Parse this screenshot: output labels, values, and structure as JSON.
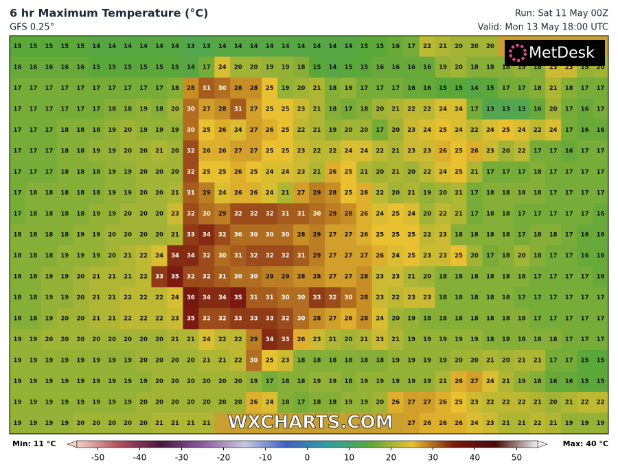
{
  "header": {
    "title": "6 hr Maximum Temperature (°C)",
    "subtitle": "GFS 0.25°",
    "run": "Run: Sat 11 May 00Z",
    "valid": "Valid: Mon 13 May 18:00 UTC"
  },
  "logo": "MetDesk",
  "watermark": "WXCHARTS.COM",
  "grid": {
    "rows": [
      [
        15,
        15,
        15,
        15,
        15,
        14,
        14,
        14,
        14,
        14,
        14,
        13,
        13,
        14,
        14,
        14,
        14,
        14,
        14,
        14,
        14,
        14,
        15,
        15,
        16,
        17,
        22,
        21,
        20,
        20,
        20,
        null,
        null,
        null,
        null,
        null,
        null,
        null
      ],
      [
        16,
        16,
        16,
        16,
        16,
        15,
        15,
        15,
        15,
        15,
        15,
        14,
        17,
        24,
        20,
        20,
        19,
        19,
        18,
        15,
        14,
        15,
        15,
        16,
        16,
        16,
        16,
        19,
        20,
        18,
        18,
        18,
        19,
        18,
        23,
        23,
        19,
        20
      ],
      [
        17,
        17,
        17,
        17,
        17,
        17,
        17,
        17,
        17,
        17,
        18,
        28,
        31,
        30,
        28,
        28,
        25,
        19,
        20,
        21,
        18,
        19,
        17,
        17,
        17,
        16,
        16,
        15,
        15,
        14,
        15,
        17,
        17,
        18,
        21,
        18,
        17,
        17
      ],
      [
        17,
        17,
        17,
        17,
        17,
        17,
        18,
        18,
        19,
        18,
        20,
        30,
        27,
        28,
        31,
        27,
        25,
        25,
        23,
        21,
        18,
        17,
        18,
        20,
        21,
        22,
        22,
        24,
        24,
        17,
        13,
        13,
        13,
        16,
        20,
        17,
        16,
        17
      ],
      [
        17,
        17,
        17,
        18,
        18,
        18,
        19,
        20,
        19,
        19,
        19,
        30,
        25,
        26,
        24,
        27,
        26,
        25,
        22,
        21,
        19,
        20,
        20,
        17,
        20,
        23,
        24,
        25,
        24,
        22,
        24,
        25,
        24,
        22,
        24,
        17,
        16,
        16
      ],
      [
        17,
        17,
        17,
        18,
        18,
        19,
        19,
        20,
        20,
        21,
        20,
        32,
        26,
        26,
        27,
        27,
        25,
        25,
        23,
        22,
        22,
        24,
        24,
        22,
        21,
        23,
        23,
        26,
        25,
        26,
        23,
        20,
        22,
        17,
        17,
        16,
        17,
        17
      ],
      [
        17,
        17,
        17,
        18,
        18,
        18,
        19,
        19,
        20,
        20,
        20,
        32,
        25,
        25,
        26,
        25,
        24,
        24,
        23,
        21,
        26,
        25,
        21,
        20,
        21,
        20,
        22,
        24,
        25,
        21,
        17,
        17,
        17,
        18,
        17,
        17,
        17,
        17
      ],
      [
        17,
        18,
        18,
        18,
        18,
        18,
        19,
        19,
        20,
        20,
        21,
        31,
        29,
        24,
        26,
        26,
        24,
        21,
        27,
        29,
        28,
        25,
        26,
        22,
        20,
        21,
        19,
        20,
        21,
        17,
        18,
        18,
        18,
        18,
        17,
        17,
        17,
        17
      ],
      [
        17,
        18,
        18,
        18,
        18,
        19,
        19,
        20,
        20,
        20,
        23,
        32,
        30,
        29,
        32,
        32,
        32,
        31,
        31,
        30,
        29,
        28,
        26,
        24,
        25,
        24,
        20,
        22,
        21,
        17,
        18,
        18,
        17,
        17,
        17,
        17,
        17,
        16
      ],
      [
        18,
        18,
        18,
        18,
        19,
        19,
        20,
        20,
        20,
        20,
        21,
        33,
        34,
        32,
        30,
        30,
        30,
        30,
        28,
        29,
        27,
        27,
        26,
        25,
        25,
        25,
        22,
        23,
        18,
        18,
        18,
        18,
        17,
        18,
        18,
        17,
        16,
        16
      ],
      [
        18,
        18,
        18,
        19,
        19,
        19,
        20,
        21,
        22,
        24,
        34,
        34,
        32,
        30,
        31,
        32,
        32,
        32,
        31,
        29,
        27,
        27,
        27,
        26,
        24,
        25,
        23,
        23,
        25,
        20,
        17,
        18,
        20,
        18,
        17,
        17,
        16,
        16
      ],
      [
        18,
        18,
        19,
        19,
        20,
        21,
        21,
        21,
        22,
        33,
        35,
        32,
        32,
        31,
        30,
        30,
        29,
        29,
        28,
        28,
        27,
        27,
        28,
        23,
        23,
        21,
        20,
        18,
        18,
        18,
        18,
        18,
        18,
        17,
        17,
        17,
        17,
        16
      ],
      [
        18,
        18,
        19,
        19,
        20,
        21,
        21,
        22,
        22,
        22,
        24,
        36,
        34,
        34,
        35,
        31,
        31,
        30,
        30,
        33,
        32,
        30,
        28,
        23,
        22,
        23,
        23,
        18,
        18,
        18,
        18,
        18,
        17,
        17,
        17,
        17,
        17,
        17
      ],
      [
        18,
        18,
        19,
        20,
        20,
        21,
        21,
        22,
        22,
        22,
        23,
        35,
        32,
        32,
        33,
        33,
        33,
        32,
        30,
        28,
        27,
        26,
        28,
        24,
        20,
        19,
        18,
        18,
        18,
        18,
        18,
        18,
        18,
        17,
        17,
        17,
        17,
        17
      ],
      [
        19,
        19,
        20,
        20,
        20,
        20,
        20,
        20,
        20,
        20,
        21,
        21,
        24,
        22,
        22,
        29,
        34,
        33,
        26,
        23,
        21,
        20,
        21,
        23,
        21,
        19,
        19,
        19,
        19,
        19,
        18,
        18,
        18,
        18,
        18,
        17,
        17,
        17
      ],
      [
        19,
        19,
        19,
        19,
        19,
        19,
        19,
        19,
        20,
        20,
        20,
        20,
        21,
        21,
        22,
        30,
        25,
        23,
        18,
        18,
        18,
        18,
        18,
        18,
        19,
        19,
        19,
        19,
        20,
        20,
        21,
        20,
        21,
        21,
        17,
        17,
        15,
        15
      ],
      [
        19,
        19,
        19,
        19,
        19,
        19,
        19,
        19,
        19,
        20,
        20,
        20,
        20,
        20,
        20,
        19,
        17,
        18,
        18,
        19,
        19,
        18,
        19,
        19,
        19,
        19,
        19,
        21,
        26,
        27,
        24,
        21,
        19,
        18,
        16,
        16,
        15,
        15
      ],
      [
        19,
        19,
        19,
        19,
        19,
        19,
        19,
        19,
        20,
        20,
        20,
        20,
        20,
        20,
        20,
        26,
        24,
        18,
        17,
        18,
        18,
        19,
        19,
        20,
        26,
        27,
        27,
        26,
        25,
        23,
        22,
        22,
        22,
        21,
        20,
        21,
        22,
        22
      ],
      [
        19,
        19,
        19,
        19,
        20,
        20,
        20,
        20,
        20,
        21,
        21,
        21,
        21,
        null,
        null,
        null,
        null,
        null,
        null,
        null,
        null,
        null,
        null,
        null,
        null,
        27,
        26,
        26,
        26,
        24,
        23,
        21,
        21,
        22,
        21,
        19,
        19,
        19
      ]
    ]
  },
  "colorbar": {
    "range": [
      -55,
      55
    ],
    "ticks": [
      -50,
      -40,
      -30,
      -20,
      -10,
      0,
      10,
      20,
      30,
      40,
      50
    ],
    "colors": [
      "#f4d0c4",
      "#b05060",
      "#4a1440",
      "#8a5aa0",
      "#c8c8e0",
      "#4060c0",
      "#30a0a0",
      "#5aa83a",
      "#e8c030",
      "#7a1a10",
      "#4a0808",
      "#f0f0f0"
    ],
    "min_label": "Min: 11 °C",
    "max_label": "Max: 40 °C"
  }
}
